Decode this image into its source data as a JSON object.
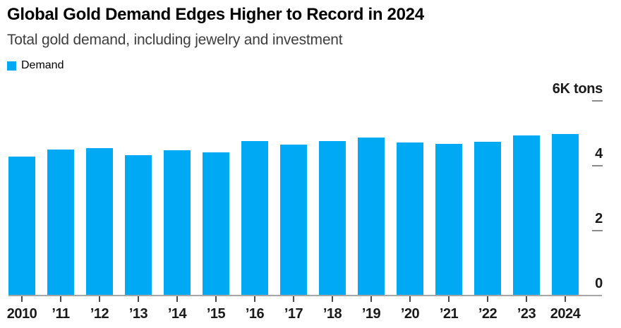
{
  "header": {
    "title": "Global Gold Demand Edges Higher to Record in 2024",
    "subtitle": "Total gold demand, including jewelry and investment"
  },
  "legend": {
    "label": "Demand",
    "swatch_color": "#00a9f4"
  },
  "chart_data": {
    "type": "bar",
    "title": "Global Gold Demand Edges Higher to Record in 2024",
    "subtitle": "Total gold demand, including jewelry and investment",
    "series_name": "Demand",
    "unit_label": "6K tons",
    "categories": [
      "2010",
      "’11",
      "’12",
      "’13",
      "’14",
      "’15",
      "’16",
      "’17",
      "’18",
      "’19",
      "’20",
      "’21",
      "’22",
      "’23",
      "2024"
    ],
    "values": [
      4.28,
      4.5,
      4.54,
      4.32,
      4.48,
      4.41,
      4.76,
      4.65,
      4.76,
      4.86,
      4.71,
      4.67,
      4.74,
      4.93,
      4.97
    ],
    "ylabel": "K tons",
    "ylim": [
      0,
      6
    ],
    "yticks": [
      {
        "value": 0,
        "label": "0",
        "dash": false
      },
      {
        "value": 2,
        "label": "2",
        "dash": true
      },
      {
        "value": 4,
        "label": "4",
        "dash": true
      },
      {
        "value": 6,
        "label": "6K tons",
        "dash": true
      }
    ],
    "bar_color": "#00a9f4",
    "axis_line_color": "#a6a6a6",
    "legend_position": "top-left",
    "grid": false
  }
}
